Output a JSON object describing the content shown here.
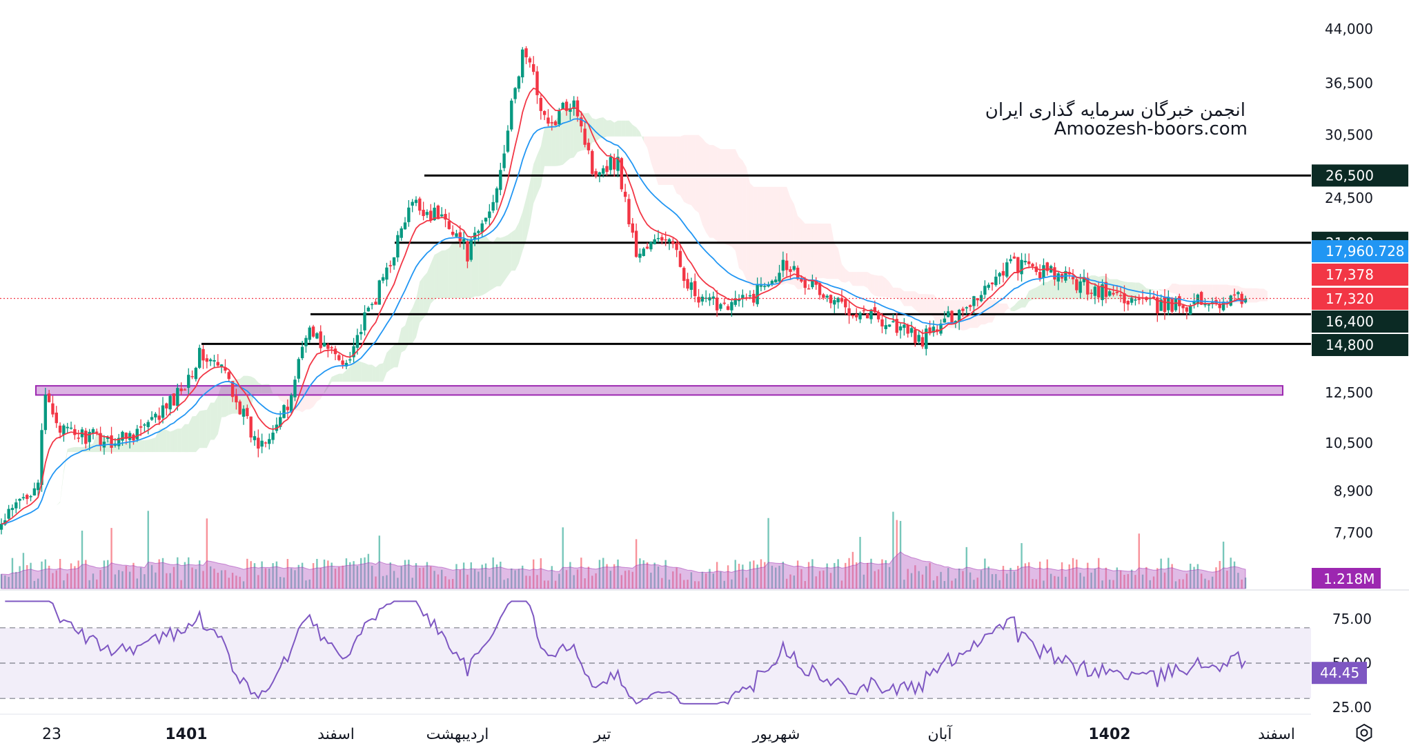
{
  "watermark": {
    "line1": "انجمن خبرگان سرمایه گذاری ایران",
    "line2": "Amoozesh-boors.com"
  },
  "chart_data": {
    "type": "candlestick",
    "title": "",
    "price_axis": {
      "scale": "log",
      "ticks": [
        "44,000",
        "36,500",
        "30,500",
        "24,500",
        "12,500",
        "10,500",
        "8,900",
        "7,700"
      ],
      "tick_values": [
        44000,
        36500,
        30500,
        24500,
        12500,
        10500,
        8900,
        7700
      ]
    },
    "time_axis": {
      "labels": [
        "23",
        "1401",
        "اسفند",
        "اردیبهشت",
        "تیر",
        "شهریور",
        "آبان",
        "1402",
        "اسفند"
      ]
    },
    "horizontal_levels": [
      26500,
      21000,
      16400,
      14800
    ],
    "zone": {
      "low": 12400,
      "high": 12800,
      "color": "#9c27b0"
    },
    "price_tags": [
      {
        "label": "26,500",
        "value": 26500,
        "color": "#0b2a24"
      },
      {
        "label": "21,000",
        "value": 21000,
        "color": "#0b2a24"
      },
      {
        "label": "17,960.728",
        "value": 17960.728,
        "color": "#2196f3"
      },
      {
        "label": "17,378",
        "value": 17378,
        "color": "#f23645"
      },
      {
        "label": "17,320",
        "value": 17320,
        "color": "#f23645"
      },
      {
        "label": "16,400",
        "value": 16400,
        "color": "#0b2a24"
      },
      {
        "label": "14,800",
        "value": 14800,
        "color": "#0b2a24"
      }
    ],
    "last_price": 17320,
    "price_path_keypoints": [
      [
        0,
        7900
      ],
      [
        0.03,
        9300
      ],
      [
        0.035,
        12300
      ],
      [
        0.05,
        10900
      ],
      [
        0.09,
        10600
      ],
      [
        0.12,
        11200
      ],
      [
        0.14,
        12300
      ],
      [
        0.16,
        14300
      ],
      [
        0.18,
        13400
      ],
      [
        0.205,
        10400
      ],
      [
        0.23,
        11800
      ],
      [
        0.245,
        15600
      ],
      [
        0.275,
        13800
      ],
      [
        0.3,
        17200
      ],
      [
        0.33,
        24000
      ],
      [
        0.36,
        22600
      ],
      [
        0.375,
        20200
      ],
      [
        0.395,
        24000
      ],
      [
        0.42,
        41500
      ],
      [
        0.44,
        31000
      ],
      [
        0.46,
        35000
      ],
      [
        0.475,
        27000
      ],
      [
        0.495,
        28000
      ],
      [
        0.51,
        20200
      ],
      [
        0.535,
        21500
      ],
      [
        0.56,
        17000
      ],
      [
        0.6,
        17200
      ],
      [
        0.63,
        19700
      ],
      [
        0.665,
        17200
      ],
      [
        0.7,
        16400
      ],
      [
        0.74,
        15000
      ],
      [
        0.78,
        17200
      ],
      [
        0.81,
        19600
      ],
      [
        0.85,
        18700
      ],
      [
        0.89,
        17600
      ],
      [
        0.93,
        16800
      ],
      [
        0.96,
        17100
      ],
      [
        1.0,
        17320
      ]
    ],
    "ma_fast_label": "17,378",
    "ma_slow_label": "17,960.728",
    "volume": {
      "last_label": "1.218M"
    },
    "rsi": {
      "last_label": "44.45",
      "levels": [
        70,
        50,
        30
      ],
      "ticks": [
        "75.00",
        "50.00",
        "25.00"
      ],
      "tick_values": [
        75,
        50,
        25
      ]
    },
    "colors": {
      "up": "#089981",
      "down": "#f23645",
      "ma_fast": "#f23645",
      "ma_slow": "#2196f3",
      "rsi_line": "#7e57c2",
      "cloud_up": "#a5d6a7",
      "cloud_down": "#ffcdd2",
      "volume_ma_fill": "#ba68c8"
    }
  }
}
